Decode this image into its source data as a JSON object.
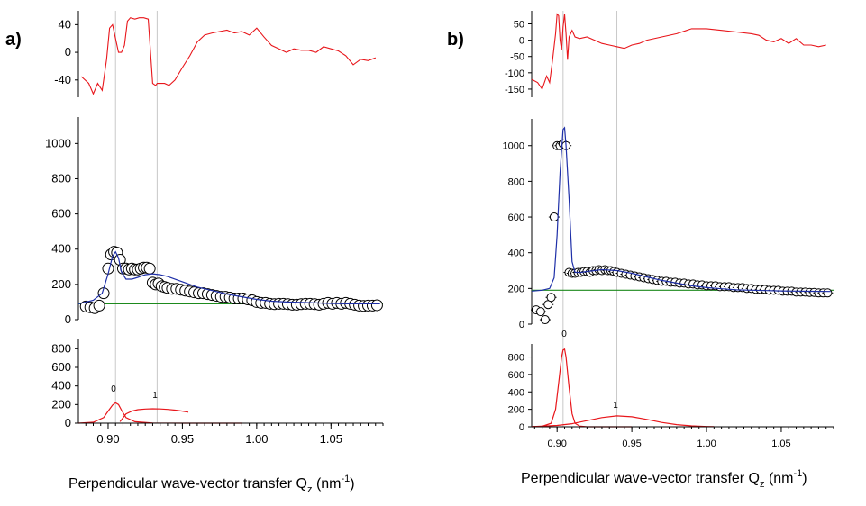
{
  "panels": [
    {
      "id": "a",
      "label": "a)",
      "xlabel_prefix": "Perpendicular wave-vector transfer Q",
      "xlabel_sub": "z",
      "xlabel_unit_open": " (nm",
      "xlabel_sup": "-1",
      "xlabel_unit_close": ")",
      "x_ticks": [
        "0.90",
        "0.95",
        "1.00",
        "1.05"
      ],
      "residual_ticks": [
        "40",
        "0",
        "-40"
      ],
      "main_ticks": [
        "1000",
        "800",
        "600",
        "400",
        "200",
        "0"
      ],
      "comp_ticks": [
        "800",
        "600",
        "400",
        "200",
        "0"
      ],
      "peak_labels": [
        "0",
        "1"
      ]
    },
    {
      "id": "b",
      "label": "b)",
      "xlabel_prefix": "Perpendicular wave-vector transfer Q",
      "xlabel_sub": "z",
      "xlabel_unit_open": " (nm",
      "xlabel_sup": "-1",
      "xlabel_unit_close": ")",
      "x_ticks": [
        "0.90",
        "0.95",
        "1.00",
        "1.05"
      ],
      "residual_ticks": [
        "50",
        "0",
        "-50",
        "-100",
        "-150"
      ],
      "main_ticks": [
        "1000",
        "800",
        "600",
        "400",
        "200",
        "0"
      ],
      "comp_ticks": [
        "800",
        "600",
        "400",
        "200",
        "0"
      ],
      "peak_labels": [
        "0",
        "1"
      ]
    }
  ],
  "colors": {
    "data_markers": "#000000",
    "fit": "#1e2fa8",
    "baseline": "#1d8a1d",
    "residual": "#e8161b",
    "components": "#e8161b",
    "guide_lines": "#c8c8c8"
  },
  "chart_data": [
    {
      "panel": "a",
      "type": "scatter",
      "xlabel": "Perpendicular wave-vector transfer Qz (nm-1)",
      "xlim": [
        0.88,
        1.085
      ],
      "guide_lines_x": [
        0.905,
        0.933
      ],
      "residual": {
        "ylim": [
          -65,
          60
        ],
        "x": [
          0.882,
          0.887,
          0.89,
          0.893,
          0.896,
          0.899,
          0.901,
          0.903,
          0.905,
          0.907,
          0.909,
          0.911,
          0.913,
          0.915,
          0.918,
          0.921,
          0.924,
          0.927,
          0.93,
          0.932,
          0.933,
          0.935,
          0.938,
          0.941,
          0.945,
          0.95,
          0.955,
          0.96,
          0.965,
          0.97,
          0.975,
          0.98,
          0.985,
          0.99,
          0.995,
          1.0,
          1.005,
          1.01,
          1.015,
          1.02,
          1.025,
          1.03,
          1.035,
          1.04,
          1.045,
          1.05,
          1.055,
          1.06,
          1.065,
          1.07,
          1.075,
          1.08
        ],
        "y": [
          -35,
          -45,
          -60,
          -45,
          -55,
          -10,
          35,
          40,
          20,
          0,
          0,
          10,
          45,
          50,
          48,
          50,
          50,
          48,
          -45,
          -48,
          -45,
          -45,
          -45,
          -48,
          -40,
          -22,
          -5,
          15,
          25,
          28,
          30,
          32,
          28,
          30,
          25,
          35,
          22,
          10,
          5,
          0,
          5,
          3,
          3,
          0,
          8,
          5,
          2,
          -5,
          -18,
          -10,
          -12,
          -8
        ]
      },
      "main": {
        "ylim": [
          0,
          1150
        ],
        "points_x": [
          0.885,
          0.888,
          0.891,
          0.894,
          0.897,
          0.9,
          0.902,
          0.904,
          0.906,
          0.908,
          0.91,
          0.912,
          0.914,
          0.916,
          0.918,
          0.92,
          0.922,
          0.924,
          0.926,
          0.928,
          0.93,
          0.932,
          0.934,
          0.936,
          0.938,
          0.94,
          0.943,
          0.946,
          0.949,
          0.952,
          0.955,
          0.958,
          0.961,
          0.964,
          0.967,
          0.97,
          0.973,
          0.976,
          0.979,
          0.982,
          0.985,
          0.988,
          0.991,
          0.994,
          0.997,
          1.0,
          1.003,
          1.006,
          1.009,
          1.012,
          1.015,
          1.018,
          1.021,
          1.024,
          1.027,
          1.03,
          1.033,
          1.036,
          1.039,
          1.042,
          1.045,
          1.048,
          1.051,
          1.054,
          1.057,
          1.06,
          1.063,
          1.066,
          1.069,
          1.072,
          1.075,
          1.078,
          1.081
        ],
        "points_y": [
          75,
          70,
          65,
          80,
          150,
          290,
          370,
          385,
          380,
          340,
          290,
          290,
          285,
          290,
          285,
          285,
          290,
          295,
          295,
          290,
          210,
          200,
          205,
          190,
          185,
          180,
          175,
          175,
          170,
          165,
          160,
          155,
          150,
          150,
          145,
          140,
          135,
          130,
          130,
          125,
          120,
          120,
          120,
          115,
          110,
          100,
          95,
          95,
          90,
          88,
          90,
          90,
          88,
          85,
          85,
          88,
          90,
          90,
          88,
          85,
          90,
          95,
          90,
          95,
          90,
          95,
          90,
          85,
          80,
          78,
          80,
          80,
          82
        ],
        "fit_x": [
          0.88,
          0.89,
          0.896,
          0.9,
          0.903,
          0.905,
          0.907,
          0.909,
          0.912,
          0.916,
          0.92,
          0.925,
          0.93,
          0.935,
          0.94,
          0.95,
          0.96,
          0.97,
          0.98,
          0.99,
          1.0,
          1.01,
          1.02,
          1.03,
          1.04,
          1.05,
          1.06,
          1.07,
          1.083
        ],
        "fit_y": [
          90,
          110,
          150,
          260,
          360,
          385,
          350,
          270,
          230,
          230,
          240,
          255,
          260,
          255,
          245,
          215,
          185,
          165,
          145,
          130,
          115,
          105,
          100,
          98,
          95,
          92,
          90,
          90,
          90
        ],
        "baseline_y": 90
      },
      "components": {
        "ylim": [
          0,
          900
        ],
        "peaks": [
          {
            "label": "0",
            "x": [
              0.88,
              0.89,
              0.897,
              0.9,
              0.903,
              0.905,
              0.907,
              0.909,
              0.912,
              0.918,
              0.93,
              0.95,
              0.97,
              0.99
            ],
            "y": [
              0,
              10,
              60,
              130,
              195,
              220,
              200,
              140,
              60,
              15,
              2,
              0,
              0,
              0
            ]
          },
          {
            "label": "1",
            "x": [
              0.908,
              0.912,
              0.916,
              0.92,
              0.925,
              0.93,
              0.935,
              0.94,
              0.945,
              0.95,
              0.954
            ],
            "y": [
              15,
              100,
              130,
              145,
              152,
              155,
              153,
              148,
              140,
              130,
              118
            ]
          }
        ]
      }
    },
    {
      "panel": "b",
      "type": "scatter",
      "xlabel": "Perpendicular wave-vector transfer Qz (nm-1)",
      "xlim": [
        0.883,
        1.085
      ],
      "guide_lines_x": [
        0.904,
        0.94
      ],
      "residual": {
        "ylim": [
          -175,
          90
        ],
        "x": [
          0.883,
          0.887,
          0.89,
          0.893,
          0.895,
          0.897,
          0.899,
          0.9,
          0.901,
          0.902,
          0.903,
          0.904,
          0.905,
          0.906,
          0.907,
          0.908,
          0.91,
          0.912,
          0.915,
          0.92,
          0.925,
          0.93,
          0.935,
          0.94,
          0.945,
          0.95,
          0.955,
          0.96,
          0.97,
          0.98,
          0.99,
          1.0,
          1.01,
          1.02,
          1.03,
          1.035,
          1.04,
          1.045,
          1.05,
          1.055,
          1.06,
          1.065,
          1.07,
          1.075,
          1.08
        ],
        "y": [
          -120,
          -130,
          -150,
          -110,
          -130,
          -60,
          20,
          80,
          75,
          0,
          -30,
          40,
          80,
          20,
          -60,
          10,
          30,
          10,
          5,
          10,
          0,
          -10,
          -15,
          -20,
          -25,
          -15,
          -10,
          0,
          10,
          20,
          35,
          35,
          30,
          25,
          20,
          15,
          0,
          -5,
          5,
          -10,
          5,
          -15,
          -15,
          -20,
          -15
        ]
      },
      "main": {
        "ylim": [
          0,
          1150
        ],
        "points_x": [
          0.886,
          0.889,
          0.892,
          0.894,
          0.896,
          0.898,
          0.9,
          0.902,
          0.904,
          0.906,
          0.908,
          0.91,
          0.912,
          0.914,
          0.916,
          0.918,
          0.92,
          0.922,
          0.924,
          0.926,
          0.928,
          0.93,
          0.932,
          0.934,
          0.936,
          0.938,
          0.94,
          0.943,
          0.946,
          0.949,
          0.952,
          0.955,
          0.958,
          0.961,
          0.964,
          0.967,
          0.97,
          0.973,
          0.976,
          0.979,
          0.982,
          0.985,
          0.988,
          0.991,
          0.994,
          0.997,
          1.0,
          1.003,
          1.006,
          1.009,
          1.012,
          1.015,
          1.018,
          1.021,
          1.024,
          1.027,
          1.03,
          1.033,
          1.036,
          1.039,
          1.042,
          1.045,
          1.048,
          1.051,
          1.054,
          1.057,
          1.06,
          1.063,
          1.066,
          1.069,
          1.072,
          1.075,
          1.078,
          1.081
        ],
        "points_y": [
          80,
          70,
          25,
          110,
          150,
          600,
          1000,
          1000,
          1010,
          1000,
          290,
          285,
          285,
          290,
          290,
          295,
          295,
          290,
          300,
          300,
          305,
          300,
          305,
          300,
          300,
          295,
          290,
          285,
          280,
          275,
          270,
          265,
          260,
          255,
          250,
          245,
          240,
          240,
          235,
          235,
          230,
          230,
          225,
          225,
          220,
          220,
          215,
          215,
          215,
          210,
          210,
          210,
          205,
          205,
          205,
          200,
          200,
          195,
          195,
          195,
          190,
          190,
          190,
          185,
          185,
          185,
          180,
          180,
          180,
          178,
          178,
          175,
          175,
          175
        ],
        "fit_x": [
          0.883,
          0.89,
          0.895,
          0.898,
          0.9,
          0.902,
          0.904,
          0.905,
          0.906,
          0.908,
          0.91,
          0.912,
          0.916,
          0.92,
          0.925,
          0.93,
          0.94,
          0.95,
          0.96,
          0.97,
          0.98,
          0.99,
          1.0,
          1.01,
          1.02,
          1.03,
          1.04,
          1.05,
          1.06,
          1.07,
          1.083
        ],
        "fit_y": [
          185,
          190,
          200,
          260,
          500,
          850,
          1090,
          1100,
          1000,
          700,
          350,
          290,
          290,
          295,
          300,
          305,
          300,
          285,
          265,
          245,
          230,
          215,
          205,
          198,
          192,
          190,
          188,
          186,
          185,
          184,
          183
        ],
        "baseline_y": 190
      },
      "components": {
        "ylim": [
          0,
          950
        ],
        "peaks": [
          {
            "label": "0",
            "x": [
              0.883,
              0.89,
              0.896,
              0.899,
              0.901,
              0.903,
              0.904,
              0.905,
              0.906,
              0.908,
              0.91,
              0.912,
              0.915,
              0.92,
              0.93,
              0.95
            ],
            "y": [
              0,
              5,
              40,
              200,
              500,
              800,
              880,
              890,
              800,
              450,
              150,
              40,
              8,
              0,
              0,
              0
            ]
          },
          {
            "label": "1",
            "x": [
              0.883,
              0.9,
              0.91,
              0.92,
              0.93,
              0.94,
              0.95,
              0.96,
              0.97,
              0.98,
              0.99,
              1.0,
              1.005
            ],
            "y": [
              2,
              15,
              35,
              70,
              105,
              125,
              115,
              85,
              50,
              25,
              10,
              3,
              1
            ]
          }
        ]
      }
    }
  ]
}
